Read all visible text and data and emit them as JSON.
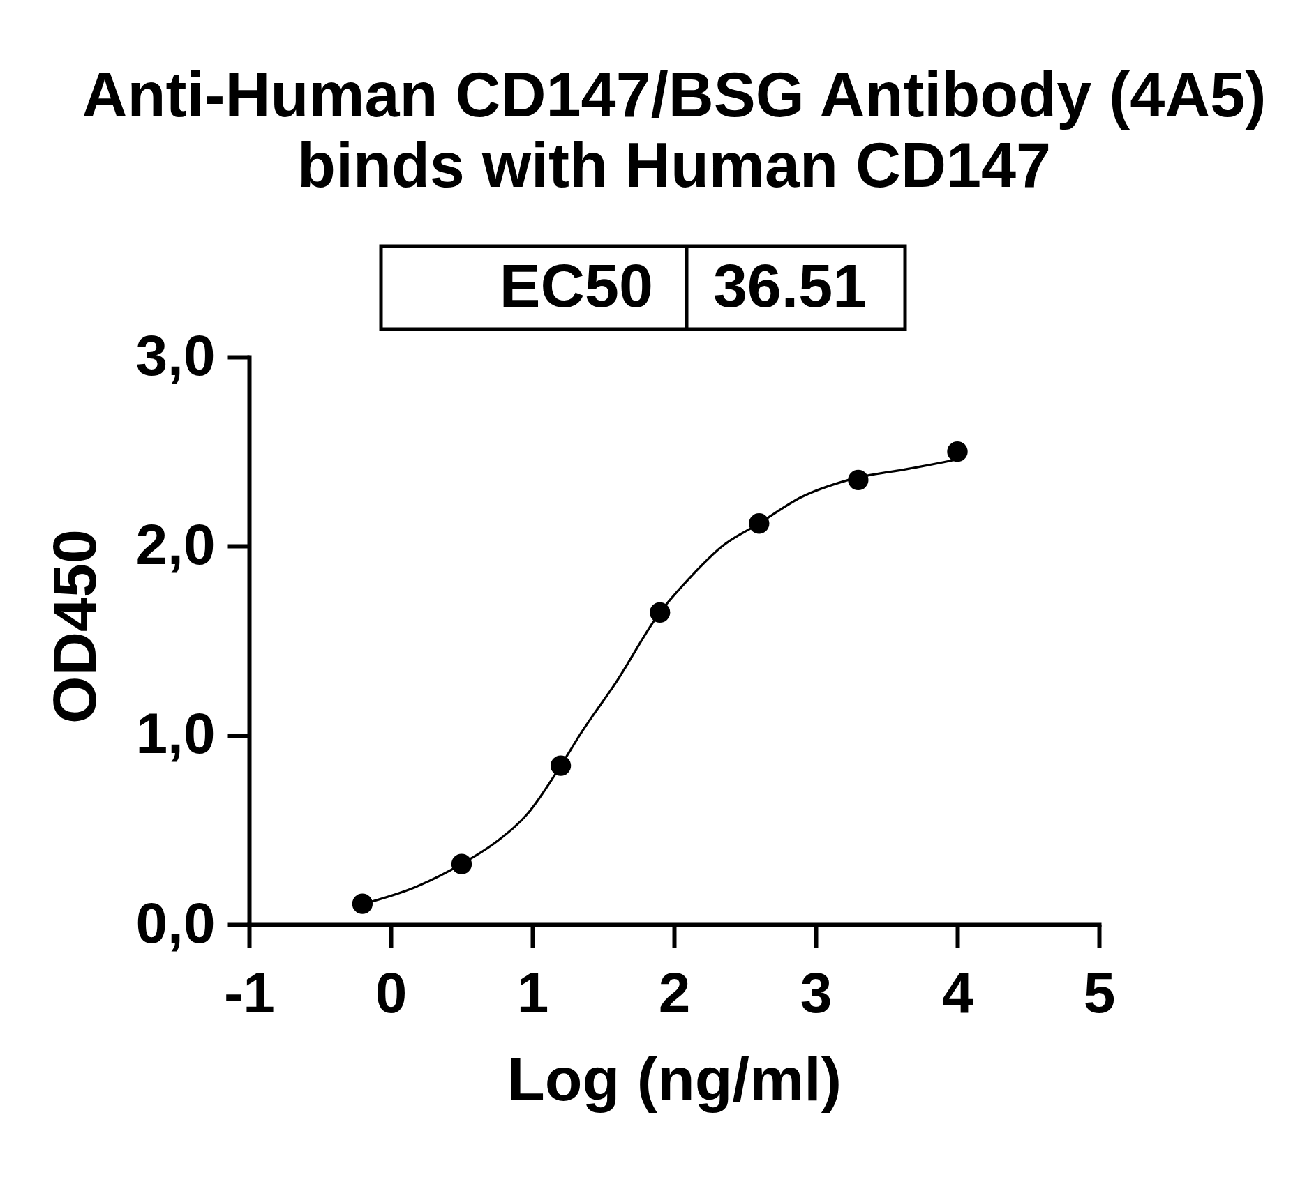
{
  "chart_data": {
    "type": "scatter",
    "title": "Anti-Human CD147/BSG Antibody (4A5)\nbinds with Human CD147",
    "xlabel": "Log (ng/ml)",
    "ylabel": "OD450",
    "annotations": [
      "EC50",
      "36.51"
    ],
    "series": [
      {
        "type": "line",
        "marker": "none",
        "color": "#000000",
        "x": [
          -0.19,
          0.18,
          0.5,
          0.75,
          0.97,
          1.2,
          1.35,
          1.59,
          1.9,
          2.12,
          2.34,
          2.6,
          2.9,
          3.23,
          3.66,
          3.94,
          4.0
        ],
        "values": [
          0.11,
          0.2,
          0.32,
          0.44,
          0.59,
          0.84,
          1.02,
          1.28,
          1.65,
          1.84,
          2.0,
          2.12,
          2.26,
          2.35,
          2.41,
          2.45,
          2.46
        ]
      },
      {
        "color": "#000000",
        "x": [
          -0.2,
          0.5,
          1.2,
          1.9,
          2.6,
          3.3,
          4.0
        ],
        "values": [
          0.11,
          0.32,
          0.84,
          1.65,
          2.12,
          2.35,
          2.5
        ]
      }
    ],
    "marker": "circle",
    "line_style": "solid",
    "xlim": [
      -1,
      5
    ],
    "xticks": [
      -1,
      0,
      1,
      2,
      3,
      4,
      5
    ],
    "ylim": [
      0,
      3
    ],
    "yticks": [
      {
        "value": 0,
        "label": "0,0"
      },
      {
        "value": 1,
        "label": "1,0"
      },
      {
        "value": 2,
        "label": "2,0"
      },
      {
        "value": 3,
        "label": "3,0"
      }
    ]
  }
}
